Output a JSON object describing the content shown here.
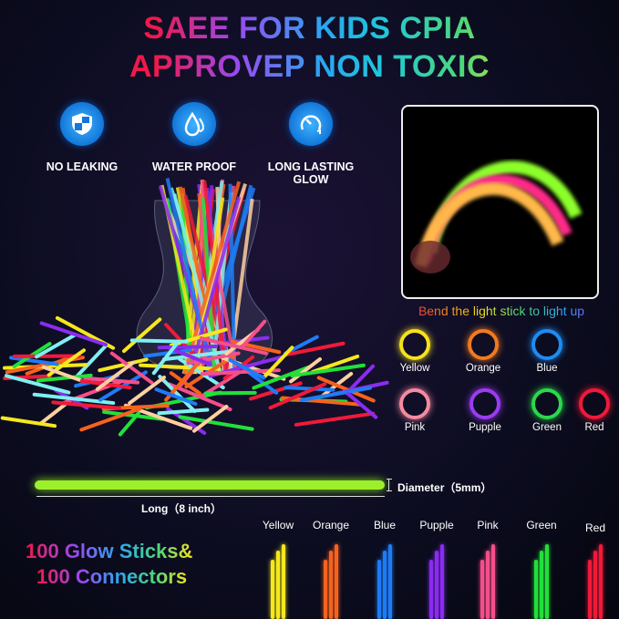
{
  "title": {
    "line1": "SAEE FOR KIDS CPIA",
    "line2": "APPROVEP NON TOXIC"
  },
  "features": [
    {
      "label": "NO LEAKING",
      "icon": "shield-icon"
    },
    {
      "label": "WATER PROOF",
      "icon": "water-drop-icon"
    },
    {
      "label": "LONG LASTING GLOW",
      "icon": "gauge-icon"
    }
  ],
  "bend_caption": "Bend the light stick to light up",
  "bracelets": [
    {
      "label": "Yellow",
      "color": "#f5e21d"
    },
    {
      "label": "Orange",
      "color": "#f07a20"
    },
    {
      "label": "Blue",
      "color": "#1e8cf0"
    },
    {
      "label": "Pink",
      "color": "#f58aa0"
    },
    {
      "label": "Pupple",
      "color": "#9b3cf0"
    },
    {
      "label": "Green",
      "color": "#2bd84a"
    },
    {
      "label": "Red",
      "color": "#f0193a"
    }
  ],
  "dimensions": {
    "diameter": "Diameter（5mm）",
    "length": "Long（8 inch）"
  },
  "quantity": {
    "line1": "100 Glow Sticks&",
    "line2": "100 Connectors"
  },
  "sticks": [
    {
      "label": "Yellow",
      "color": "#f5e81d"
    },
    {
      "label": "Orange",
      "color": "#f6621e"
    },
    {
      "label": "Blue",
      "color": "#1e7cf5"
    },
    {
      "label": "Pupple",
      "color": "#8a2cf0"
    },
    {
      "label": "Pink",
      "color": "#f54f8a"
    },
    {
      "label": "Green",
      "color": "#22e03a"
    },
    {
      "label": "Red",
      "color": "#f01a3a"
    }
  ]
}
